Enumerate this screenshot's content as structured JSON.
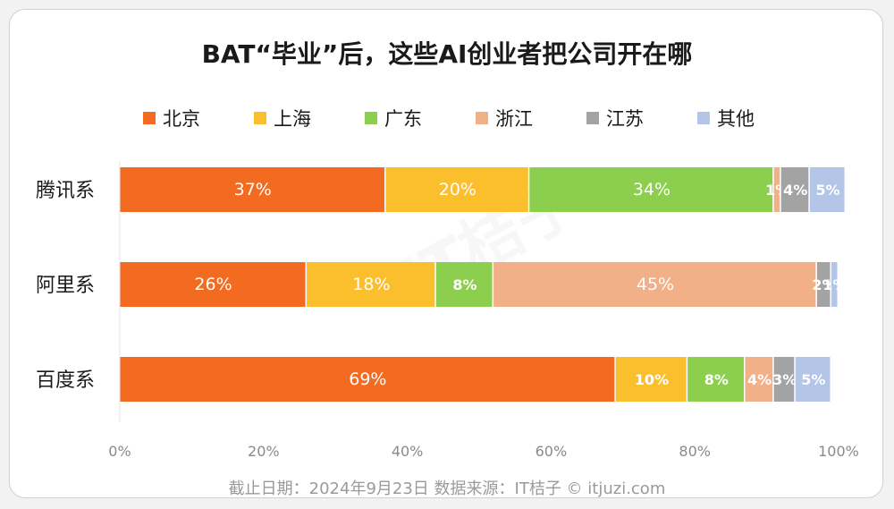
{
  "chart_data": {
    "type": "bar",
    "orientation": "horizontal",
    "stacked": true,
    "title": "BAT“毕业”后，这些AI创业者把公司开在哪",
    "categories": [
      "腾讯系",
      "阿里系",
      "百度系"
    ],
    "series": [
      {
        "name": "北京",
        "color": "#f26b21",
        "values": [
          37,
          26,
          69
        ],
        "labels": [
          "37%",
          "26%",
          "69%"
        ]
      },
      {
        "name": "上海",
        "color": "#fbbf2d",
        "values": [
          20,
          18,
          10
        ],
        "labels": [
          "20%",
          "18%",
          "10%"
        ]
      },
      {
        "name": "广东",
        "color": "#8ccf4f",
        "values": [
          34,
          8,
          8
        ],
        "labels": [
          "34%",
          "8%",
          "8%"
        ]
      },
      {
        "name": "浙江",
        "color": "#f2b089",
        "values": [
          1,
          45,
          4
        ],
        "labels": [
          "1%",
          "45%",
          "4%"
        ]
      },
      {
        "name": "江苏",
        "color": "#a3a3a3",
        "values": [
          4,
          2,
          3
        ],
        "labels": [
          "4%",
          "2%",
          "3%"
        ]
      },
      {
        "name": "其他",
        "color": "#b3c6e8",
        "values": [
          5,
          1,
          5
        ],
        "labels": [
          "5%",
          "1%",
          "5%"
        ]
      }
    ],
    "xlim": [
      0,
      100
    ],
    "xticks": [
      "0%",
      "20%",
      "40%",
      "60%",
      "80%",
      "100%"
    ],
    "legend_position": "top",
    "grid": false
  },
  "footer": "截止日期：2024年9月23日     数据来源：IT桔子 © itjuzi.com",
  "watermark": "IT桔子"
}
